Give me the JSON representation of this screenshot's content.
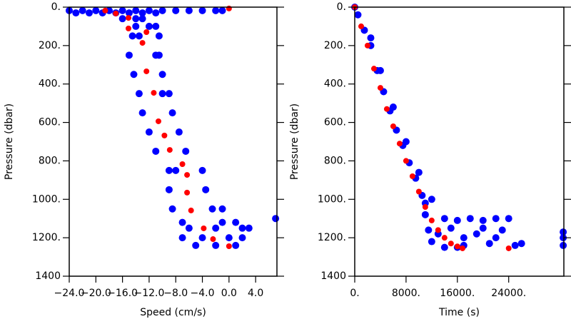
{
  "chart_data": [
    {
      "type": "scatter",
      "xlabel": "Speed (cm/s)",
      "ylabel": "Pressure (dbar)",
      "xlim": [
        -24,
        7.2
      ],
      "ylim": [
        0,
        1400
      ],
      "y_inverted": true,
      "xticks": [
        {
          "value": -24,
          "label": "−24.0"
        },
        {
          "value": -20,
          "label": "−20.0"
        },
        {
          "value": -16,
          "label": "−16.0"
        },
        {
          "value": -12,
          "label": "−12.0"
        },
        {
          "value": -8,
          "label": "−8.0"
        },
        {
          "value": -4,
          "label": "−4.0"
        },
        {
          "value": 0,
          "label": "0.0"
        },
        {
          "value": 4,
          "label": "4.0"
        }
      ],
      "yticks": [
        {
          "value": 0,
          "label": "0."
        },
        {
          "value": 200,
          "label": "200."
        },
        {
          "value": 400,
          "label": "400."
        },
        {
          "value": 600,
          "label": "600."
        },
        {
          "value": 800,
          "label": "800."
        },
        {
          "value": 1000,
          "label": "1000."
        },
        {
          "value": 1200,
          "label": "1200."
        },
        1400
      ],
      "series": [
        {
          "color": "#0000ff",
          "x": [
            -24,
            -22,
            -20,
            -18,
            -16,
            -14,
            -12,
            -10,
            -8,
            -6,
            -4,
            -2,
            -1,
            -23,
            -21,
            -19,
            -17,
            -15,
            -13,
            -11,
            -16,
            -14,
            -13,
            -14,
            -12,
            -11,
            -14.5,
            -10.5,
            -13.5,
            -15,
            -10.5,
            -11,
            -14.3,
            -10,
            -13.5,
            -9,
            -10,
            -13,
            -8.5,
            -12,
            -7.5,
            -11,
            -6.5,
            -9,
            -4,
            -8,
            -9,
            -3.5,
            -8.5,
            -2.5,
            -1,
            -7,
            -1,
            1,
            -6,
            -2,
            2,
            3,
            -7,
            -4,
            0,
            2,
            -5,
            -2,
            1,
            7
          ],
          "values": [
            18,
            18,
            18,
            18,
            18,
            18,
            18,
            18,
            18,
            18,
            18,
            18,
            18,
            30,
            30,
            30,
            30,
            30,
            30,
            30,
            60,
            60,
            60,
            100,
            100,
            100,
            150,
            150,
            150,
            250,
            250,
            250,
            350,
            350,
            450,
            450,
            450,
            550,
            550,
            650,
            650,
            750,
            750,
            850,
            850,
            850,
            950,
            950,
            1050,
            1050,
            1050,
            1120,
            1120,
            1120,
            1150,
            1150,
            1150,
            1150,
            1200,
            1200,
            1200,
            1200,
            1240,
            1240,
            1240,
            1100
          ]
        },
        {
          "color": "#ff0000",
          "x": [
            -18.6,
            -17,
            -15.1,
            -15.1,
            -12.4,
            -13,
            -12.4,
            -11.3,
            -10.6,
            -9.7,
            -8.9,
            -7,
            -6.3,
            -6.3,
            -5.7,
            -3.8,
            -2.4,
            0,
            0
          ],
          "values": [
            18,
            33,
            56,
            111,
            130,
            186,
            334,
            446,
            594,
            668,
            743,
            817,
            873,
            965,
            1058,
            1151,
            1207,
            1244,
            7
          ]
        }
      ]
    },
    {
      "type": "scatter",
      "xlabel": "Time (s)",
      "ylabel": "Pressure (dbar)",
      "xlim": [
        0,
        32600
      ],
      "ylim": [
        0,
        1400
      ],
      "y_inverted": true,
      "xticks": [
        {
          "value": 0,
          "label": "0."
        },
        {
          "value": 8000,
          "label": "8000."
        },
        {
          "value": 16000,
          "label": "16000."
        },
        {
          "value": 24000,
          "label": "24000."
        }
      ],
      "yticks": [
        {
          "value": 0,
          "label": "0."
        },
        {
          "value": 200,
          "label": "200."
        },
        {
          "value": 400,
          "label": "400."
        },
        {
          "value": 600,
          "label": "600."
        },
        {
          "value": 800,
          "label": "800."
        },
        {
          "value": 1000,
          "label": "1000."
        },
        {
          "value": 1200,
          "label": "1200."
        },
        1400
      ],
      "series": [
        {
          "color": "#0000ff",
          "x": [
            0,
            500,
            1500,
            2500,
            3500,
            4500,
            5500,
            6500,
            7500,
            8500,
            9500,
            10500,
            11000,
            11500,
            12000,
            2500,
            4000,
            6000,
            8000,
            10000,
            12000,
            14000,
            16000,
            18000,
            20000,
            22000,
            24000,
            14000,
            17000,
            19000,
            21000,
            23000,
            25000,
            26000,
            32500,
            32500,
            32500,
            15000,
            20000,
            17000,
            22000,
            13000,
            16000,
            11000
          ],
          "values": [
            0,
            40,
            120,
            200,
            330,
            440,
            540,
            640,
            720,
            810,
            890,
            980,
            1080,
            1160,
            1220,
            160,
            330,
            520,
            700,
            860,
            1000,
            1100,
            1110,
            1100,
            1110,
            1100,
            1100,
            1250,
            1240,
            1180,
            1230,
            1160,
            1240,
            1230,
            1170,
            1200,
            1240,
            1150,
            1150,
            1200,
            1200,
            1180,
            1250,
            1020
          ]
        },
        {
          "color": "#ff0000",
          "x": [
            0,
            1000,
            2000,
            3000,
            4000,
            5000,
            6000,
            7000,
            8000,
            9000,
            10000,
            11000,
            12000,
            13000,
            14000,
            15000,
            16000,
            16800,
            24000
          ],
          "values": [
            0,
            100,
            200,
            320,
            420,
            530,
            620,
            710,
            800,
            880,
            960,
            1040,
            1110,
            1160,
            1200,
            1230,
            1245,
            1255,
            1255
          ]
        }
      ]
    }
  ]
}
